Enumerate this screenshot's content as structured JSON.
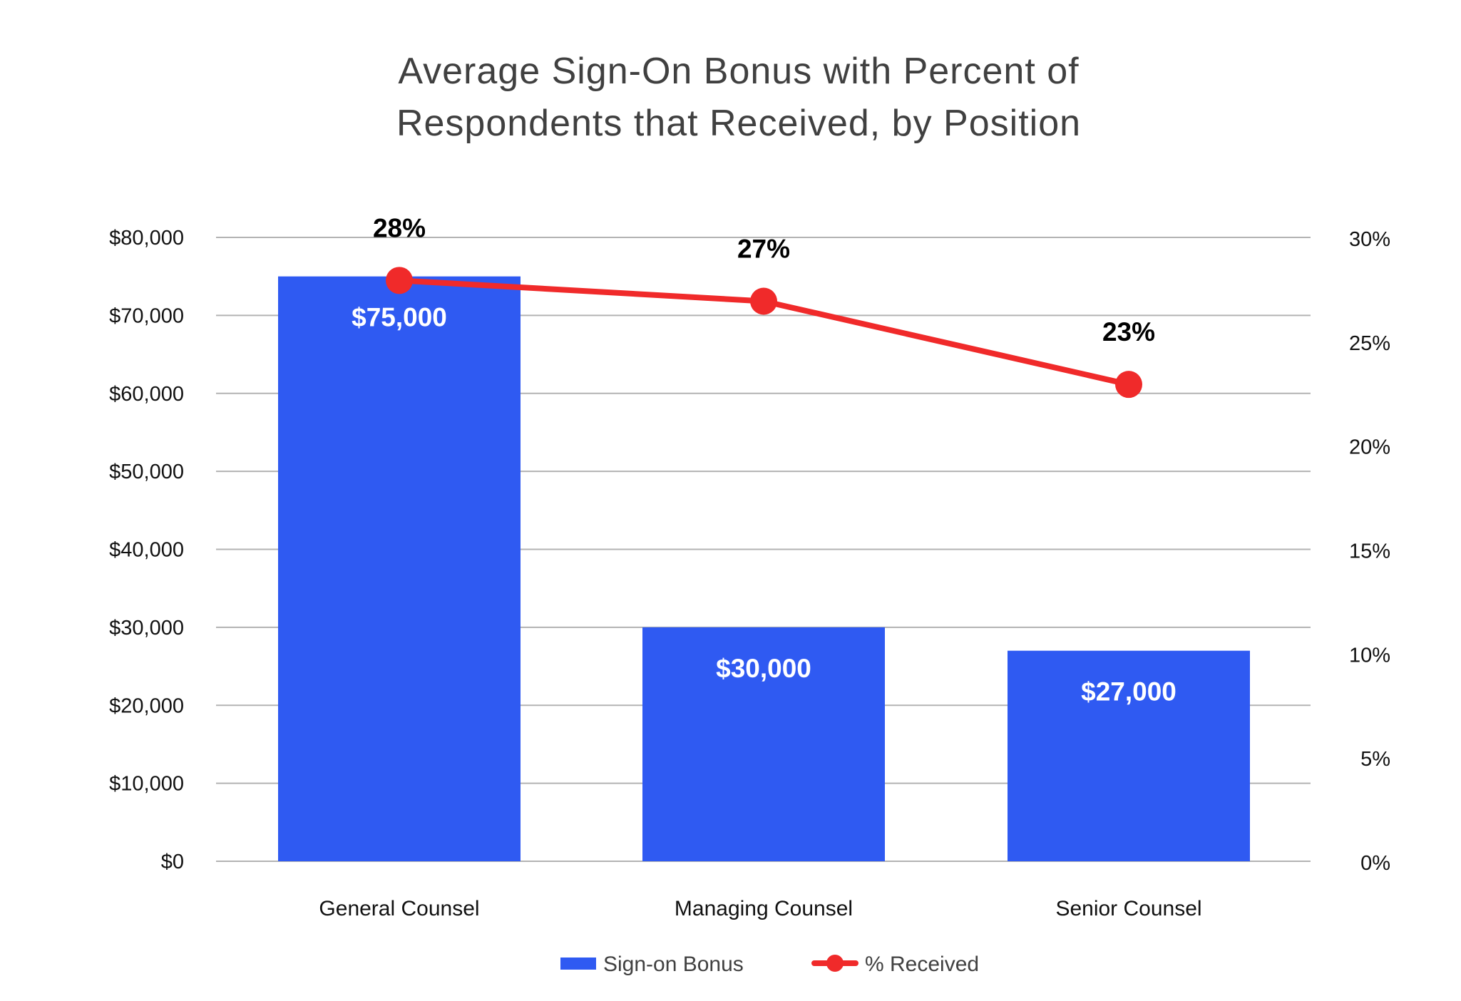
{
  "chart_data": {
    "type": "bar",
    "title_lines": [
      "Average Sign-On Bonus with Percent of",
      "Respondents that Received, by Position"
    ],
    "categories": [
      "General Counsel",
      "Managing Counsel",
      "Senior Counsel"
    ],
    "series": [
      {
        "name": "Sign-on Bonus",
        "type": "bar",
        "axis": "left",
        "color": "#2f5af2",
        "values": [
          75000,
          30000,
          27000
        ],
        "labels": [
          "$75,000",
          "$30,000",
          "$27,000"
        ]
      },
      {
        "name": "% Received",
        "type": "line",
        "axis": "right",
        "color": "#f02a2a",
        "values": [
          28,
          27,
          23
        ],
        "labels": [
          "28%",
          "27%",
          "23%"
        ]
      }
    ],
    "y_left": {
      "min": 0,
      "max": 80000,
      "ticks": [
        0,
        10000,
        20000,
        30000,
        40000,
        50000,
        60000,
        70000,
        80000
      ],
      "tick_labels": [
        "$0",
        "$10,000",
        "$20,000",
        "$30,000",
        "$40,000",
        "$50,000",
        "$60,000",
        "$70,000",
        "$80,000"
      ]
    },
    "y_right": {
      "min": 0,
      "max": 30,
      "ticks": [
        0,
        5,
        10,
        15,
        20,
        25,
        30
      ],
      "tick_labels": [
        "0%",
        "5%",
        "10%",
        "15%",
        "20%",
        "25%",
        "30%"
      ]
    },
    "grid": true,
    "legend_position": "bottom-center"
  }
}
